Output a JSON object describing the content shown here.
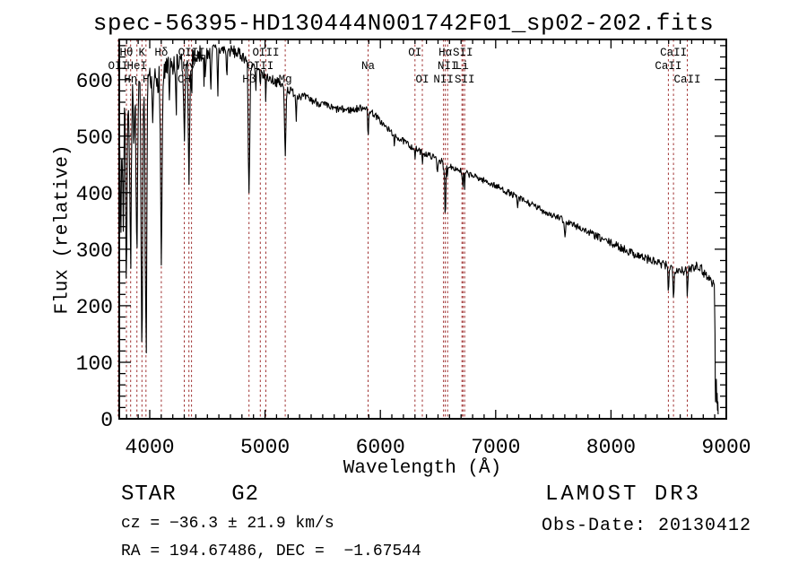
{
  "title": "spec-56395-HD130444N001742F01_sp02-202.fits",
  "bottom_left": {
    "class_line": "STAR    G2",
    "cz_line": "cz = −36.3 ± 21.9 km/s",
    "radec_line": "RA = 194.67486, DEC =  −1.67544"
  },
  "bottom_right": {
    "survey_line": "LAMOST DR3",
    "obsdate_line": "Obs-Date: 20130412"
  },
  "chart_data": {
    "type": "line",
    "title": "spec-56395-HD130444N001742F01_sp02-202.fits",
    "xlabel": "Wavelength (Å)",
    "ylabel": "Flux (relative)",
    "xlim": [
      3736,
      9000
    ],
    "ylim": [
      0,
      671
    ],
    "x_ticks_major": [
      4000,
      5000,
      6000,
      7000,
      8000,
      9000
    ],
    "x_tick_labels": [
      "4000",
      "5000",
      "6000",
      "7000",
      "8000",
      "9000"
    ],
    "x_tick_minor_step": 100,
    "y_ticks_major": [
      0,
      100,
      200,
      300,
      400,
      500,
      600
    ],
    "y_tick_labels": [
      "0",
      "100",
      "200",
      "300",
      "400",
      "500",
      "600"
    ],
    "y_tick_minor_step": 20,
    "grid": false,
    "colors": {
      "spectrum": "#000000",
      "line_marker": "#A03232",
      "axis": "#000000"
    },
    "spectral_lines": [
      {
        "label": "Hθ",
        "wavelength": 3798,
        "row": 1
      },
      {
        "label": "K",
        "wavelength": 3933,
        "row": 1
      },
      {
        "label": "Hδ",
        "wavelength": 4101,
        "row": 1
      },
      {
        "label": "OIII",
        "wavelength": 4363,
        "row": 1
      },
      {
        "label": "OIII",
        "wavelength": 5007,
        "row": 1
      },
      {
        "label": "OI",
        "wavelength": 6300,
        "row": 1
      },
      {
        "label": "Hα",
        "wavelength": 6563,
        "row": 1
      },
      {
        "label": "SII",
        "wavelength": 6716,
        "row": 1
      },
      {
        "label": "CaII",
        "wavelength": 8542,
        "row": 1
      },
      {
        "label": "OII",
        "wavelength": 3727,
        "row": 2
      },
      {
        "label": "HeI",
        "wavelength": 3889,
        "row": 2
      },
      {
        "label": "Hγ",
        "wavelength": 4340,
        "row": 2
      },
      {
        "label": "OIII",
        "wavelength": 4959,
        "row": 2
      },
      {
        "label": "Na",
        "wavelength": 5894,
        "row": 2
      },
      {
        "label": "NII",
        "wavelength": 6583,
        "row": 2
      },
      {
        "label": "Li",
        "wavelength": 6708,
        "row": 2
      },
      {
        "label": "CaII",
        "wavelength": 8498,
        "row": 2
      },
      {
        "label": "Hη",
        "wavelength": 3835,
        "row": 3
      },
      {
        "label": "H",
        "wavelength": 3968,
        "row": 3
      },
      {
        "label": "CH",
        "wavelength": 4300,
        "row": 3
      },
      {
        "label": "Hβ",
        "wavelength": 4861,
        "row": 3
      },
      {
        "label": "Mg",
        "wavelength": 5175,
        "row": 3
      },
      {
        "label": "OI",
        "wavelength": 6364,
        "row": 3
      },
      {
        "label": "NII",
        "wavelength": 6548,
        "row": 3
      },
      {
        "label": "SII",
        "wavelength": 6731,
        "row": 3
      },
      {
        "label": "CaII",
        "wavelength": 8662,
        "row": 3
      }
    ],
    "continuum": [
      [
        3736,
        480
      ],
      [
        3760,
        525
      ],
      [
        3790,
        545
      ],
      [
        3820,
        555
      ],
      [
        3860,
        565
      ],
      [
        3920,
        575
      ],
      [
        3980,
        585
      ],
      [
        4050,
        600
      ],
      [
        4150,
        618
      ],
      [
        4250,
        630
      ],
      [
        4350,
        640
      ],
      [
        4450,
        646
      ],
      [
        4550,
        652
      ],
      [
        4650,
        653
      ],
      [
        4750,
        648
      ],
      [
        4820,
        640
      ],
      [
        4900,
        622
      ],
      [
        5000,
        606
      ],
      [
        5100,
        596
      ],
      [
        5200,
        582
      ],
      [
        5300,
        572
      ],
      [
        5450,
        560
      ],
      [
        5600,
        548
      ],
      [
        5750,
        546
      ],
      [
        5870,
        552
      ],
      [
        5950,
        538
      ],
      [
        6050,
        515
      ],
      [
        6150,
        498
      ],
      [
        6250,
        484
      ],
      [
        6350,
        472
      ],
      [
        6450,
        464
      ],
      [
        6563,
        452
      ],
      [
        6650,
        443
      ],
      [
        6750,
        434
      ],
      [
        6850,
        426
      ],
      [
        7000,
        412
      ],
      [
        7150,
        396
      ],
      [
        7300,
        380
      ],
      [
        7450,
        364
      ],
      [
        7600,
        350
      ],
      [
        7750,
        336
      ],
      [
        7900,
        320
      ],
      [
        8050,
        306
      ],
      [
        8200,
        292
      ],
      [
        8350,
        280
      ],
      [
        8450,
        272
      ],
      [
        8550,
        266
      ],
      [
        8650,
        262
      ],
      [
        8710,
        270
      ],
      [
        8760,
        272
      ],
      [
        8810,
        258
      ],
      [
        8860,
        246
      ],
      [
        8900,
        238
      ]
    ],
    "absorption_lines": [
      [
        3727,
        70,
        6
      ],
      [
        3750,
        160,
        7
      ],
      [
        3771,
        190,
        7
      ],
      [
        3798,
        300,
        8
      ],
      [
        3820,
        80,
        5
      ],
      [
        3835,
        260,
        8
      ],
      [
        3862,
        70,
        5
      ],
      [
        3889,
        310,
        8
      ],
      [
        3933,
        450,
        9
      ],
      [
        3968,
        445,
        9
      ],
      [
        4026,
        100,
        6
      ],
      [
        4101,
        330,
        9
      ],
      [
        4172,
        60,
        6
      ],
      [
        4226,
        70,
        5
      ],
      [
        4300,
        130,
        10
      ],
      [
        4340,
        215,
        9
      ],
      [
        4363,
        55,
        5
      ],
      [
        4481,
        45,
        5
      ],
      [
        4530,
        60,
        6
      ],
      [
        4590,
        80,
        5
      ],
      [
        4668,
        50,
        5
      ],
      [
        4861,
        235,
        9
      ],
      [
        4920,
        40,
        5
      ],
      [
        4959,
        35,
        4
      ],
      [
        5007,
        38,
        4
      ],
      [
        5175,
        118,
        8
      ],
      [
        5270,
        45,
        5
      ],
      [
        5894,
        52,
        6
      ],
      [
        6122,
        25,
        5
      ],
      [
        6300,
        22,
        4
      ],
      [
        6364,
        18,
        4
      ],
      [
        6495,
        25,
        5
      ],
      [
        6548,
        22,
        4
      ],
      [
        6563,
        102,
        6
      ],
      [
        6583,
        22,
        4
      ],
      [
        6708,
        14,
        4
      ],
      [
        6716,
        28,
        4
      ],
      [
        6731,
        28,
        4
      ],
      [
        7190,
        18,
        6
      ],
      [
        7600,
        25,
        8
      ],
      [
        8498,
        42,
        5
      ],
      [
        8542,
        52,
        6
      ],
      [
        8662,
        48,
        6
      ]
    ],
    "noise_profile": [
      [
        3736,
        42
      ],
      [
        3850,
        38
      ],
      [
        3950,
        34
      ],
      [
        4050,
        28
      ],
      [
        4200,
        22
      ],
      [
        4400,
        16
      ],
      [
        4600,
        12
      ],
      [
        4900,
        10
      ],
      [
        5200,
        8
      ],
      [
        5600,
        7
      ],
      [
        6000,
        6
      ],
      [
        6500,
        5.5
      ],
      [
        7000,
        5.5
      ],
      [
        7500,
        6
      ],
      [
        8000,
        7
      ],
      [
        8400,
        8.5
      ],
      [
        8900,
        10
      ]
    ],
    "cutoff_tail": [
      [
        8902,
        150
      ],
      [
        8904,
        60
      ],
      [
        8907,
        30
      ],
      [
        8911,
        55
      ],
      [
        8914,
        70
      ],
      [
        8917,
        28
      ],
      [
        8921,
        45
      ],
      [
        8924,
        15
      ],
      [
        8927,
        30
      ],
      [
        8929,
        8
      ]
    ],
    "noise_seed": 7
  }
}
